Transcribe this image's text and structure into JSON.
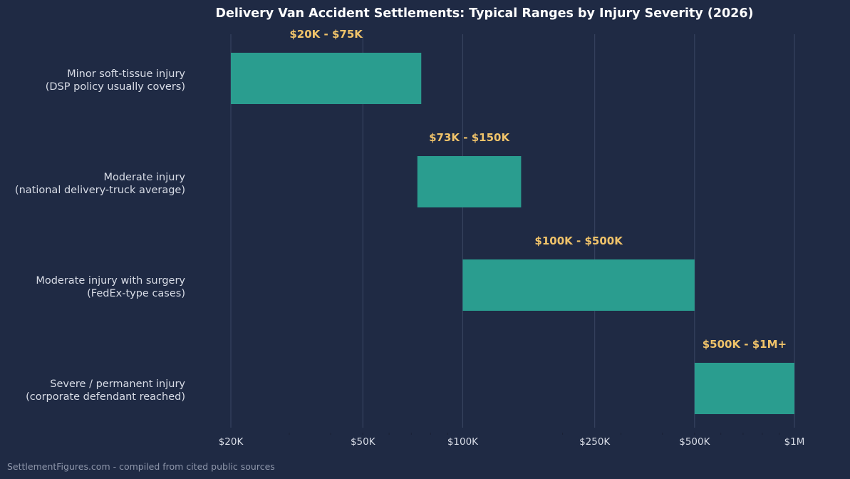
{
  "chart_data": {
    "type": "bar",
    "orientation": "horizontal-range",
    "title": "Delivery Van Accident Settlements: Typical Ranges by Injury Severity (2026)",
    "x_scale": "log",
    "xlim": [
      20000,
      1000000
    ],
    "grid": "vertical major",
    "bar_color": "#2a9d8f",
    "label_color": "#f0c36a",
    "x_ticks": [
      {
        "value": 20000,
        "label": "$20K"
      },
      {
        "value": 50000,
        "label": "$50K"
      },
      {
        "value": 100000,
        "label": "$100K"
      },
      {
        "value": 250000,
        "label": "$250K"
      },
      {
        "value": 500000,
        "label": "$500K"
      },
      {
        "value": 1000000,
        "label": "$1M"
      }
    ],
    "categories": [
      {
        "lines": [
          "Minor soft-tissue injury",
          "(DSP policy usually covers)"
        ],
        "low": 20000,
        "high": 75000,
        "label": "$20K - $75K"
      },
      {
        "lines": [
          "Moderate injury",
          "(national delivery-truck average)"
        ],
        "low": 73000,
        "high": 150000,
        "label": "$73K - $150K"
      },
      {
        "lines": [
          "Moderate injury with surgery",
          "(FedEx-type cases)"
        ],
        "low": 100000,
        "high": 500000,
        "label": "$100K - $500K"
      },
      {
        "lines": [
          "Severe / permanent injury",
          "(corporate defendant reached)"
        ],
        "low": 500000,
        "high": 1000000,
        "label": "$500K - $1M+"
      }
    ]
  },
  "footer": "SettlementFigures.com - compiled from cited public sources"
}
